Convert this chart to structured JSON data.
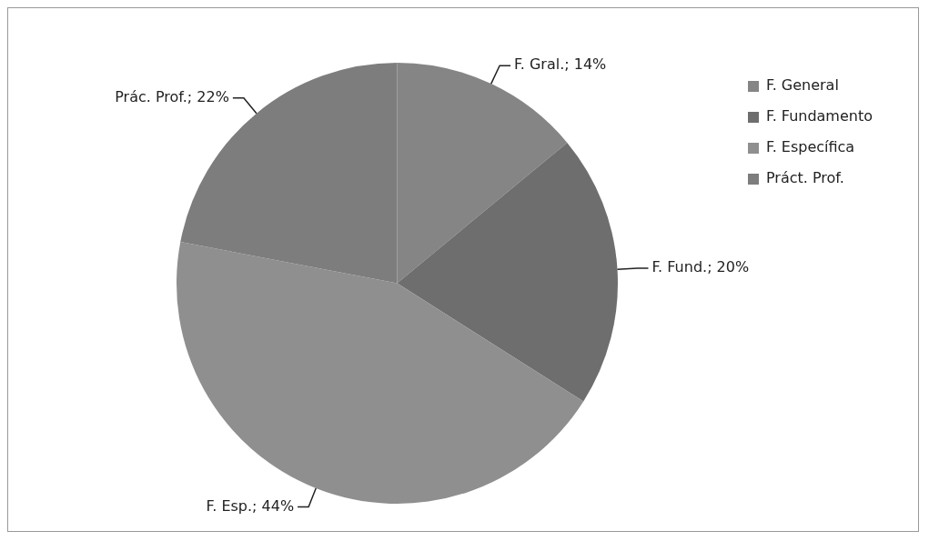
{
  "chart_data": {
    "type": "pie",
    "categories": [
      "F. General",
      "F. Fundamento",
      "F. Específica",
      "Práct. Prof."
    ],
    "values": [
      14,
      20,
      44,
      22
    ],
    "colors": [
      "#858585",
      "#6e6e6e",
      "#8f8f8f",
      "#7d7d7d"
    ],
    "value_labels": [
      "F. Gral.; 14%",
      "F. Fund.; 20%",
      "F. Esp.; 44%",
      "Prác. Prof.; 22%"
    ],
    "legend": "right"
  }
}
